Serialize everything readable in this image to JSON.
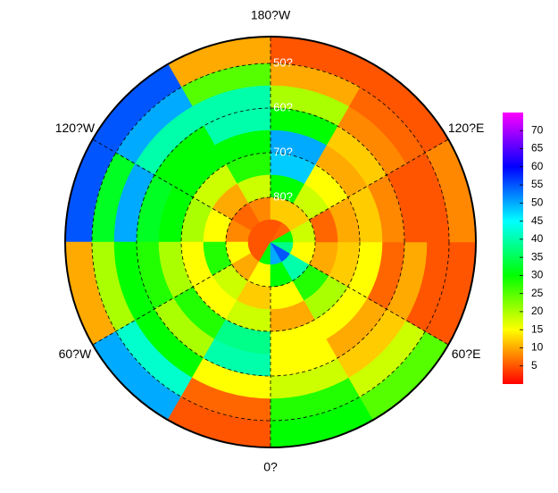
{
  "chart_data": {
    "type": "polar-heatmap",
    "colormap": "rainbow",
    "lon_edges": [
      -180,
      -150,
      -120,
      -90,
      -60,
      -30,
      0,
      30,
      60,
      90,
      120,
      150,
      180
    ],
    "lat_edges": [
      45,
      50,
      55,
      60,
      65,
      70,
      75,
      80,
      85,
      90
    ],
    "rlim": [
      44,
      90
    ],
    "values": [
      [
        10,
        25,
        40,
        40,
        30,
        28,
        18,
        8,
        5
      ],
      [
        55,
        50,
        40,
        30,
        30,
        18,
        10,
        6,
        5
      ],
      [
        55,
        32,
        50,
        32,
        30,
        20,
        15,
        8,
        5
      ],
      [
        10,
        20,
        30,
        28,
        20,
        15,
        28,
        15,
        5
      ],
      [
        50,
        42,
        30,
        20,
        28,
        15,
        18,
        10,
        5
      ],
      [
        5,
        6,
        15,
        40,
        38,
        18,
        12,
        15,
        30
      ],
      [
        30,
        28,
        18,
        15,
        15,
        10,
        15,
        30,
        50
      ],
      [
        25,
        18,
        12,
        10,
        15,
        20,
        28,
        40,
        55
      ],
      [
        5,
        5,
        10,
        6,
        15,
        12,
        10,
        15,
        38
      ],
      [
        8,
        5,
        5,
        8,
        12,
        10,
        6,
        18,
        30
      ],
      [
        5,
        6,
        8,
        12,
        10,
        15,
        18,
        12,
        6
      ],
      [
        5,
        10,
        20,
        30,
        50,
        48,
        30,
        12,
        5
      ]
    ],
    "lon_ticks": [
      {
        "value": -180,
        "label": "180?W"
      },
      {
        "value": -120,
        "label": "120?W"
      },
      {
        "value": -60,
        "label": "60?W"
      },
      {
        "value": 0,
        "label": "0?"
      },
      {
        "value": 60,
        "label": "60?E"
      },
      {
        "value": 120,
        "label": "120?E"
      }
    ],
    "lat_ticks": [
      {
        "value": 50,
        "label": "50?"
      },
      {
        "value": 60,
        "label": "60?"
      },
      {
        "value": 70,
        "label": "70?"
      },
      {
        "value": 80,
        "label": "80?"
      }
    ],
    "clim": [
      0,
      75
    ],
    "cticks": [
      5,
      10,
      15,
      20,
      25,
      30,
      35,
      40,
      45,
      50,
      55,
      60,
      65,
      70
    ]
  }
}
